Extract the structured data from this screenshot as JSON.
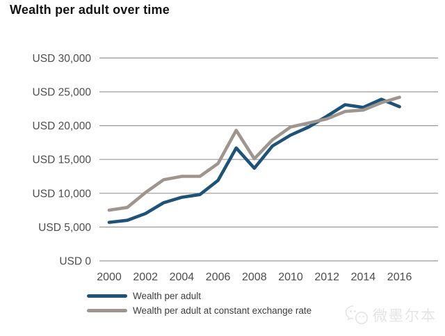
{
  "title": "Wealth per adult over time",
  "colors": {
    "series1": "#1d5379",
    "series2": "#9e958e",
    "grid": "#999999",
    "axis_text": "#4d4d4d",
    "legend_text": "#3d3d3d",
    "title_text": "#141414",
    "watermark": "#e4e4e4"
  },
  "watermark": {
    "icon": "wechat-bubbles-icon",
    "text": "微墨尔本"
  },
  "chart_data": {
    "type": "line",
    "title": "Wealth per adult over time",
    "x": [
      2000,
      2001,
      2002,
      2003,
      2004,
      2005,
      2006,
      2007,
      2008,
      2009,
      2010,
      2011,
      2012,
      2013,
      2014,
      2015,
      2016
    ],
    "x_tick_labels": [
      "2000",
      "2002",
      "2004",
      "2006",
      "2008",
      "2010",
      "2012",
      "2014",
      "2016"
    ],
    "y_tick_labels": [
      "USD 0",
      "USD 5,000",
      "USD 10,000",
      "USD 15,000",
      "USD 20,000",
      "USD 25,000",
      "USD 30,000"
    ],
    "y_tick_step": 5000,
    "ylim": [
      0,
      30000
    ],
    "xlabel": "",
    "ylabel": "USD",
    "grid": "horizontal",
    "legend_position": "bottom-left",
    "series": [
      {
        "name": "Wealth per adult",
        "color": "#1d5379",
        "values": [
          5700,
          6000,
          7000,
          8600,
          9400,
          9800,
          11900,
          16700,
          13700,
          17000,
          18600,
          19800,
          21400,
          23100,
          22700,
          23900,
          22800
        ]
      },
      {
        "name": "Wealth per adult at constant exchange rate",
        "color": "#9e958e",
        "values": [
          7500,
          7900,
          10100,
          12000,
          12500,
          12500,
          14400,
          19300,
          15100,
          17900,
          19800,
          20400,
          21000,
          22100,
          22300,
          23400,
          24200
        ]
      }
    ]
  }
}
